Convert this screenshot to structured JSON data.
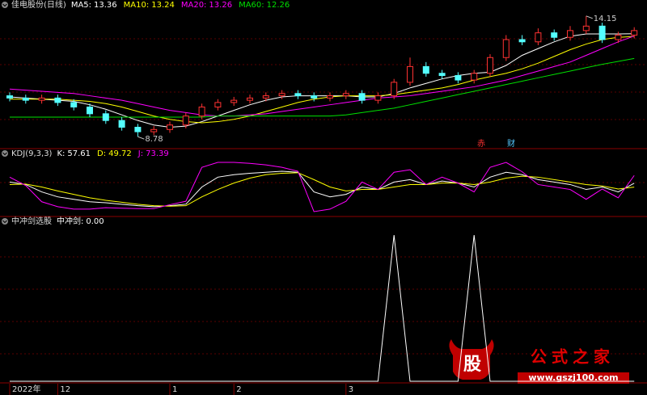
{
  "chart_data": [
    {
      "type": "candlestick",
      "title": "佳电股份(日线)",
      "open": [
        10.6,
        10.5,
        10.4,
        10.5,
        10.3,
        10.1,
        9.8,
        9.5,
        9.2,
        9.0,
        9.1,
        9.3,
        9.7,
        10.1,
        10.3,
        10.4,
        10.5,
        10.6,
        10.7,
        10.6,
        10.5,
        10.6,
        10.7,
        10.4,
        10.6,
        11.2,
        11.9,
        11.6,
        11.5,
        11.3,
        11.6,
        12.3,
        13.1,
        13.0,
        13.4,
        13.2,
        13.5,
        13.7,
        13.1,
        13.3
      ],
      "high": [
        10.75,
        10.65,
        10.65,
        10.65,
        10.45,
        10.25,
        9.95,
        9.65,
        9.35,
        9.25,
        9.45,
        9.85,
        10.25,
        10.45,
        10.55,
        10.65,
        10.75,
        10.85,
        10.85,
        10.75,
        10.75,
        10.85,
        10.85,
        10.75,
        11.35,
        12.3,
        12.1,
        11.75,
        11.65,
        11.75,
        12.45,
        13.3,
        13.3,
        13.6,
        13.55,
        13.7,
        14.15,
        13.85,
        13.45,
        13.65
      ],
      "low": [
        10.35,
        10.25,
        10.25,
        10.15,
        9.95,
        9.65,
        9.35,
        9.05,
        8.78,
        8.85,
        8.95,
        9.15,
        9.55,
        9.95,
        10.15,
        10.25,
        10.35,
        10.45,
        10.45,
        10.35,
        10.35,
        10.45,
        10.25,
        10.25,
        10.45,
        11.05,
        11.45,
        11.35,
        11.15,
        11.15,
        11.45,
        12.15,
        12.85,
        12.85,
        13.05,
        13.05,
        13.35,
        12.95,
        12.95,
        13.15
      ],
      "close": [
        10.5,
        10.4,
        10.5,
        10.3,
        10.1,
        9.8,
        9.5,
        9.2,
        9.0,
        9.1,
        9.3,
        9.7,
        10.1,
        10.3,
        10.4,
        10.5,
        10.6,
        10.7,
        10.6,
        10.5,
        10.6,
        10.7,
        10.4,
        10.6,
        11.2,
        11.9,
        11.6,
        11.5,
        11.3,
        11.6,
        12.3,
        13.1,
        13.0,
        13.4,
        13.2,
        13.5,
        13.7,
        13.1,
        13.3,
        13.5
      ],
      "up_color": "#ff3232",
      "down_color": "#54ffff",
      "ylim": [
        8.32,
        14.43
      ],
      "series": [
        {
          "name": "MA5:",
          "color": "#ffffff",
          "values": [
            10.55,
            10.5,
            10.45,
            10.4,
            10.35,
            10.2,
            10.0,
            9.75,
            9.5,
            9.3,
            9.2,
            9.25,
            9.45,
            9.7,
            9.95,
            10.2,
            10.4,
            10.55,
            10.6,
            10.6,
            10.6,
            10.6,
            10.55,
            10.55,
            10.7,
            10.95,
            11.15,
            11.35,
            11.5,
            11.6,
            11.65,
            11.95,
            12.4,
            12.7,
            13.0,
            13.25,
            13.35,
            13.35,
            13.35,
            13.36
          ]
        },
        {
          "name": "MA10:",
          "color": "#ffff00",
          "values": [
            10.45,
            10.45,
            10.45,
            10.45,
            10.4,
            10.35,
            10.25,
            10.1,
            9.9,
            9.7,
            9.55,
            9.45,
            9.4,
            9.45,
            9.55,
            9.7,
            9.9,
            10.1,
            10.3,
            10.45,
            10.55,
            10.6,
            10.6,
            10.6,
            10.65,
            10.75,
            10.85,
            10.95,
            11.1,
            11.3,
            11.45,
            11.6,
            11.8,
            12.05,
            12.35,
            12.65,
            12.9,
            13.1,
            13.2,
            13.24
          ]
        },
        {
          "name": "MA20:",
          "color": "#ff00ff",
          "values": [
            10.9,
            10.85,
            10.8,
            10.75,
            10.7,
            10.6,
            10.5,
            10.4,
            10.25,
            10.1,
            9.95,
            9.85,
            9.75,
            9.7,
            9.7,
            9.75,
            9.8,
            9.9,
            10.0,
            10.1,
            10.2,
            10.3,
            10.4,
            10.5,
            10.55,
            10.6,
            10.7,
            10.8,
            10.9,
            11.0,
            11.15,
            11.3,
            11.5,
            11.7,
            11.9,
            12.1,
            12.4,
            12.7,
            13.0,
            13.26
          ]
        },
        {
          "name": "MA60:",
          "color": "#00e000",
          "values": [
            9.65,
            9.65,
            9.65,
            9.65,
            9.65,
            9.65,
            9.65,
            9.65,
            9.65,
            9.65,
            9.65,
            9.65,
            9.65,
            9.7,
            9.7,
            9.7,
            9.7,
            9.7,
            9.7,
            9.7,
            9.7,
            9.75,
            9.85,
            9.95,
            10.05,
            10.2,
            10.35,
            10.5,
            10.65,
            10.8,
            10.95,
            11.1,
            11.25,
            11.4,
            11.55,
            11.7,
            11.85,
            12.0,
            12.13,
            12.26
          ]
        }
      ],
      "annotations": [
        {
          "text": "赤",
          "color": "#ff3232"
        },
        {
          "text": "财",
          "color": "#54c8ff"
        }
      ]
    },
    {
      "type": "line",
      "title": "KDJ(9,3,3)",
      "ylim": [
        -5,
        105
      ],
      "series": [
        {
          "name": "K:",
          "color": "#ffffff",
          "values": [
            60,
            55,
            40,
            30,
            25,
            20,
            18,
            15,
            12,
            10,
            12,
            15,
            50,
            70,
            75,
            78,
            80,
            82,
            80,
            40,
            30,
            35,
            50,
            45,
            60,
            65,
            55,
            62,
            58,
            50,
            70,
            80,
            75,
            65,
            60,
            55,
            45,
            50,
            40,
            57.61
          ]
        },
        {
          "name": "D:",
          "color": "#ffff00",
          "values": [
            55,
            56,
            50,
            42,
            35,
            28,
            23,
            19,
            15,
            12,
            11,
            12,
            30,
            45,
            58,
            68,
            75,
            78,
            79,
            65,
            50,
            42,
            45,
            45,
            50,
            55,
            55,
            58,
            58,
            55,
            60,
            68,
            72,
            70,
            65,
            60,
            55,
            52,
            46,
            49.72
          ]
        },
        {
          "name": "J:",
          "color": "#ff00ff",
          "values": [
            70,
            53,
            20,
            10,
            5,
            5,
            8,
            7,
            6,
            6,
            14,
            21,
            90,
            100,
            100,
            98,
            95,
            90,
            82,
            0,
            5,
            21,
            60,
            45,
            80,
            85,
            55,
            70,
            58,
            40,
            90,
            100,
            81,
            55,
            50,
            45,
            25,
            46,
            28,
            73.39
          ]
        }
      ]
    },
    {
      "type": "line",
      "title": "中冲剑选股",
      "ylim": [
        0,
        1.05
      ],
      "series": [
        {
          "name": "中冲剑:",
          "color": "#ffffff",
          "current": {
            "value": 0,
            "label": "0.00"
          },
          "values": [
            0,
            0,
            0,
            0,
            0,
            0,
            0,
            0,
            0,
            0,
            0,
            0,
            0,
            0,
            0,
            0,
            0,
            0,
            0,
            0,
            0,
            0,
            0,
            0,
            1,
            0,
            0,
            0,
            0,
            1,
            0,
            0,
            0,
            0,
            0,
            0,
            0,
            0,
            0,
            0
          ]
        }
      ],
      "categories": [
        "2022年",
        null,
        null,
        "12",
        null,
        null,
        null,
        null,
        null,
        null,
        "1",
        null,
        null,
        null,
        "2",
        null,
        null,
        null,
        null,
        null,
        null,
        "3",
        null,
        null,
        null,
        null,
        null,
        null,
        null,
        null,
        null,
        null,
        null,
        null,
        null,
        null,
        null,
        null,
        null,
        null
      ],
      "watermark": {
        "logo": "股",
        "name": "公式之家",
        "url": "www.gszj100.com"
      }
    }
  ]
}
